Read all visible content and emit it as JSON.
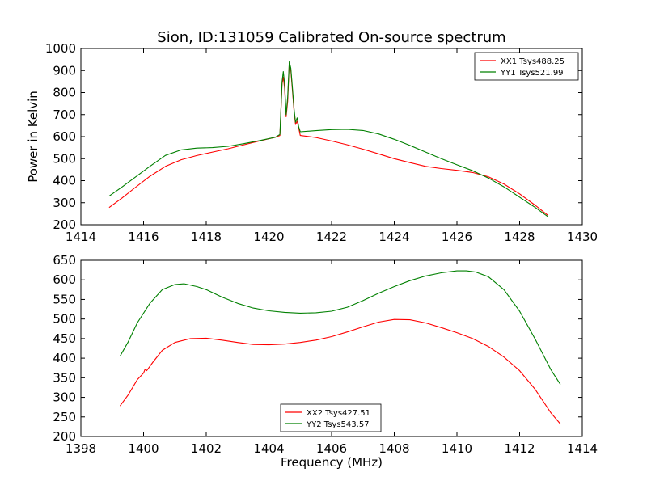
{
  "figure": {
    "title": "Sion, ID:131059 Calibrated On-source spectrum",
    "ylabel": "Power in Kelvin",
    "xlabel": "Frequency (MHz)"
  },
  "colors": {
    "red": "#ff0000",
    "green": "#008000"
  },
  "chart_data": [
    {
      "type": "line",
      "title": "Sion, ID:131059 Calibrated On-source spectrum",
      "ylabel": "Power in Kelvin",
      "xlabel": "",
      "xlim": [
        1414,
        1430
      ],
      "ylim": [
        200,
        1000
      ],
      "xticks": [
        "1414",
        "1416",
        "1418",
        "1420",
        "1422",
        "1424",
        "1426",
        "1428",
        "1430"
      ],
      "yticks": [
        "200",
        "300",
        "400",
        "500",
        "600",
        "700",
        "800",
        "900",
        "1000"
      ],
      "legend": "top-right",
      "grid": false,
      "series": [
        {
          "name": "XX1 Tsys488.25",
          "color": "#ff0000",
          "points": [
            [
              1414.9,
              278
            ],
            [
              1415.3,
              320
            ],
            [
              1415.7,
              365
            ],
            [
              1416.2,
              420
            ],
            [
              1416.7,
              465
            ],
            [
              1417.2,
              495
            ],
            [
              1417.7,
              514
            ],
            [
              1418.2,
              530
            ],
            [
              1418.7,
              545
            ],
            [
              1419.2,
              563
            ],
            [
              1419.7,
              580
            ],
            [
              1420.2,
              597
            ],
            [
              1420.35,
              605
            ],
            [
              1420.42,
              840
            ],
            [
              1420.46,
              870
            ],
            [
              1420.5,
              820
            ],
            [
              1420.55,
              690
            ],
            [
              1420.6,
              760
            ],
            [
              1420.65,
              935
            ],
            [
              1420.7,
              900
            ],
            [
              1420.75,
              810
            ],
            [
              1420.8,
              720
            ],
            [
              1420.85,
              655
            ],
            [
              1420.9,
              670
            ],
            [
              1420.95,
              640
            ],
            [
              1421.0,
              605
            ],
            [
              1421.5,
              596
            ],
            [
              1422.0,
              580
            ],
            [
              1422.5,
              563
            ],
            [
              1423.0,
              543
            ],
            [
              1423.5,
              522
            ],
            [
              1424.0,
              500
            ],
            [
              1424.5,
              482
            ],
            [
              1425.0,
              465
            ],
            [
              1425.5,
              455
            ],
            [
              1426.0,
              447
            ],
            [
              1426.5,
              437
            ],
            [
              1427.0,
              418
            ],
            [
              1427.5,
              385
            ],
            [
              1428.0,
              340
            ],
            [
              1428.5,
              288
            ],
            [
              1428.9,
              243
            ]
          ]
        },
        {
          "name": "YY1 Tsys521.99",
          "color": "#008000",
          "points": [
            [
              1414.9,
              330
            ],
            [
              1415.3,
              370
            ],
            [
              1415.7,
              412
            ],
            [
              1416.2,
              465
            ],
            [
              1416.7,
              515
            ],
            [
              1417.2,
              540
            ],
            [
              1417.7,
              548
            ],
            [
              1418.2,
              550
            ],
            [
              1418.7,
              556
            ],
            [
              1419.2,
              568
            ],
            [
              1419.7,
              582
            ],
            [
              1420.2,
              597
            ],
            [
              1420.35,
              610
            ],
            [
              1420.42,
              850
            ],
            [
              1420.46,
              895
            ],
            [
              1420.5,
              840
            ],
            [
              1420.55,
              700
            ],
            [
              1420.6,
              780
            ],
            [
              1420.65,
              940
            ],
            [
              1420.7,
              910
            ],
            [
              1420.75,
              820
            ],
            [
              1420.8,
              730
            ],
            [
              1420.85,
              665
            ],
            [
              1420.9,
              685
            ],
            [
              1420.95,
              645
            ],
            [
              1421.0,
              622
            ],
            [
              1421.5,
              627
            ],
            [
              1422.0,
              632
            ],
            [
              1422.5,
              633
            ],
            [
              1423.0,
              628
            ],
            [
              1423.5,
              612
            ],
            [
              1424.0,
              588
            ],
            [
              1424.5,
              560
            ],
            [
              1425.0,
              530
            ],
            [
              1425.5,
              500
            ],
            [
              1426.0,
              472
            ],
            [
              1426.5,
              445
            ],
            [
              1427.0,
              412
            ],
            [
              1427.5,
              372
            ],
            [
              1428.0,
              325
            ],
            [
              1428.5,
              278
            ],
            [
              1428.9,
              237
            ]
          ]
        }
      ]
    },
    {
      "type": "line",
      "title": "",
      "ylabel": "",
      "xlabel": "Frequency (MHz)",
      "xlim": [
        1398,
        1414
      ],
      "ylim": [
        200,
        650
      ],
      "xticks": [
        "1398",
        "1400",
        "1402",
        "1404",
        "1406",
        "1408",
        "1410",
        "1412",
        "1414"
      ],
      "yticks": [
        "200",
        "250",
        "300",
        "350",
        "400",
        "450",
        "500",
        "550",
        "600",
        "650"
      ],
      "legend": "bottom-center",
      "grid": false,
      "series": [
        {
          "name": "XX2 Tsys427.51",
          "color": "#ff0000",
          "points": [
            [
              1399.25,
              278
            ],
            [
              1399.5,
              305
            ],
            [
              1399.8,
              345
            ],
            [
              1400.0,
              362
            ],
            [
              1400.05,
              372
            ],
            [
              1400.1,
              368
            ],
            [
              1400.3,
              390
            ],
            [
              1400.6,
              420
            ],
            [
              1401.0,
              440
            ],
            [
              1401.5,
              450
            ],
            [
              1402.0,
              451
            ],
            [
              1402.5,
              446
            ],
            [
              1403.0,
              440
            ],
            [
              1403.5,
              435
            ],
            [
              1404.0,
              434
            ],
            [
              1404.5,
              436
            ],
            [
              1405.0,
              440
            ],
            [
              1405.5,
              446
            ],
            [
              1406.0,
              455
            ],
            [
              1406.5,
              467
            ],
            [
              1407.0,
              480
            ],
            [
              1407.5,
              492
            ],
            [
              1408.0,
              499
            ],
            [
              1408.5,
              498
            ],
            [
              1409.0,
              490
            ],
            [
              1409.5,
              478
            ],
            [
              1410.0,
              465
            ],
            [
              1410.5,
              450
            ],
            [
              1411.0,
              430
            ],
            [
              1411.5,
              403
            ],
            [
              1412.0,
              368
            ],
            [
              1412.5,
              320
            ],
            [
              1413.0,
              260
            ],
            [
              1413.3,
              232
            ]
          ]
        },
        {
          "name": "YY2 Tsys543.57",
          "color": "#008000",
          "points": [
            [
              1399.25,
              405
            ],
            [
              1399.5,
              440
            ],
            [
              1399.8,
              490
            ],
            [
              1400.2,
              540
            ],
            [
              1400.6,
              575
            ],
            [
              1401.0,
              588
            ],
            [
              1401.3,
              590
            ],
            [
              1401.7,
              583
            ],
            [
              1402.0,
              575
            ],
            [
              1402.5,
              556
            ],
            [
              1403.0,
              540
            ],
            [
              1403.5,
              528
            ],
            [
              1404.0,
              521
            ],
            [
              1404.5,
              517
            ],
            [
              1405.0,
              515
            ],
            [
              1405.5,
              516
            ],
            [
              1406.0,
              520
            ],
            [
              1406.5,
              530
            ],
            [
              1407.0,
              547
            ],
            [
              1407.5,
              566
            ],
            [
              1408.0,
              583
            ],
            [
              1408.5,
              598
            ],
            [
              1409.0,
              610
            ],
            [
              1409.5,
              618
            ],
            [
              1410.0,
              623
            ],
            [
              1410.3,
              623
            ],
            [
              1410.6,
              620
            ],
            [
              1411.0,
              608
            ],
            [
              1411.5,
              575
            ],
            [
              1412.0,
              520
            ],
            [
              1412.5,
              448
            ],
            [
              1413.0,
              370
            ],
            [
              1413.3,
              333
            ]
          ]
        }
      ]
    }
  ]
}
